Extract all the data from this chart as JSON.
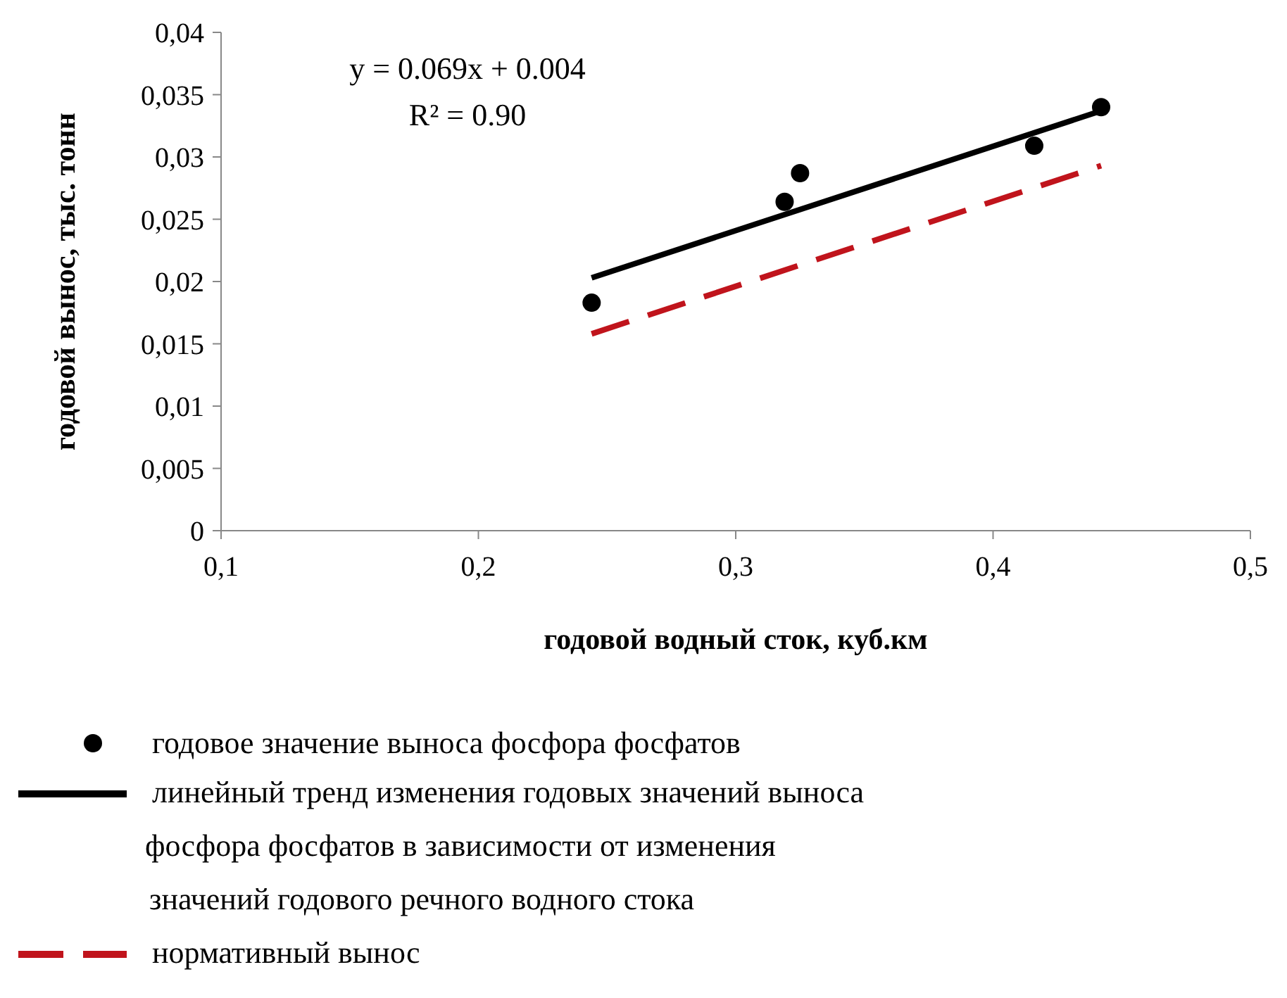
{
  "chart_data": {
    "type": "scatter",
    "xlabel": "годовой водный сток, куб.км",
    "ylabel": "годовой вынос, тыс. тонн",
    "xlim": [
      0.1,
      0.5
    ],
    "xticks": [
      {
        "value": 0.1,
        "label": "0,1"
      },
      {
        "value": 0.2,
        "label": "0,2"
      },
      {
        "value": 0.3,
        "label": "0,3"
      },
      {
        "value": 0.4,
        "label": "0,4"
      },
      {
        "value": 0.5,
        "label": "0,5"
      }
    ],
    "ylim": [
      0,
      0.04
    ],
    "yticks": [
      0,
      {
        "value": 0.005,
        "label": "0,005"
      },
      {
        "value": 0.01,
        "label": "0,01"
      },
      {
        "value": 0.015,
        "label": "0,015"
      },
      {
        "value": 0.02,
        "label": "0,02"
      },
      {
        "value": 0.025,
        "label": "0,025"
      },
      {
        "value": 0.03,
        "label": "0,03"
      },
      {
        "value": 0.035,
        "label": "0,035"
      },
      {
        "value": 0.04,
        "label": "0,04"
      }
    ],
    "series": [
      {
        "name": "годовое значение выноса  фосфора фосфатов",
        "color": "#000000",
        "marker": "circle",
        "x": [
          0.244,
          0.319,
          0.325,
          0.416,
          0.442
        ],
        "values": [
          0.0183,
          0.0264,
          0.0287,
          0.0309,
          0.034
        ]
      },
      {
        "name": "линейный тренд изменения годовых значений  выноса фосфора фосфатов в зависимости от изменения значений годового речного водного стока",
        "type": "line",
        "color": "#000000",
        "line_style": "solid",
        "x": [
          0.244,
          0.442
        ],
        "values": [
          0.0203,
          0.0337
        ]
      },
      {
        "name": "нормативный вынос",
        "type": "line",
        "color": "#c0141c",
        "line_style": "dashed",
        "x": [
          0.244,
          0.442
        ],
        "values": [
          0.0158,
          0.0293
        ]
      }
    ],
    "annotations": [
      "y = 0.069x + 0.004",
      "R² = 0.90"
    ],
    "legend": "bottom"
  }
}
